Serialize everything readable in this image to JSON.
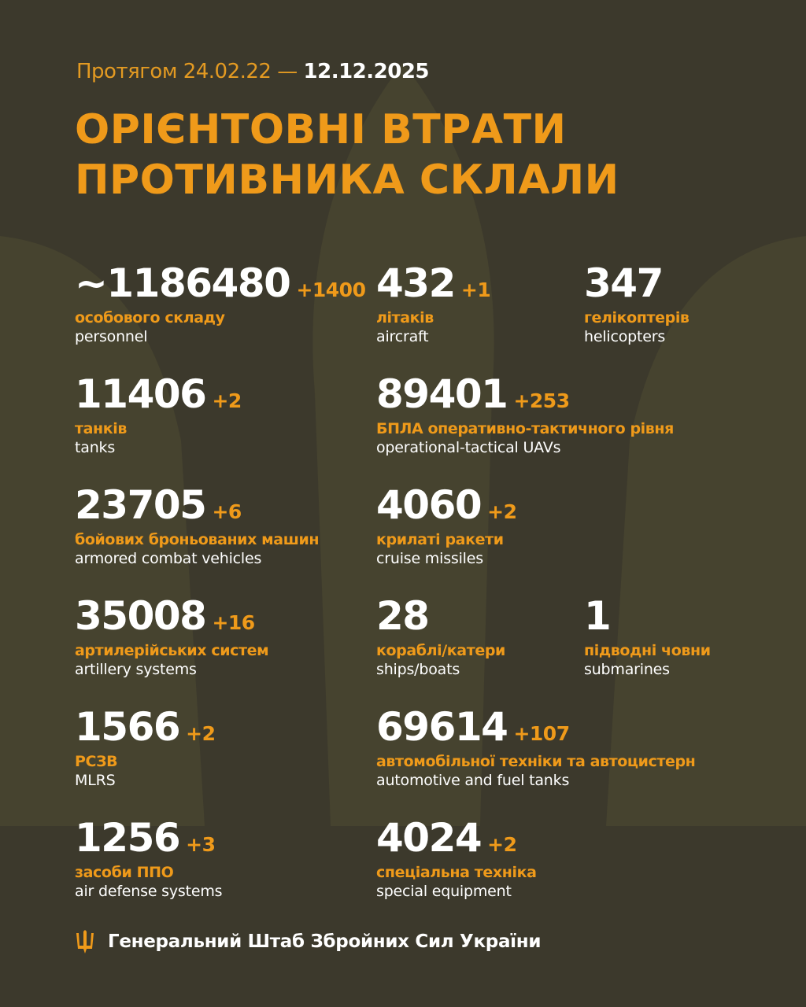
{
  "header": {
    "period_prefix": "Протягом 24.02.22 —",
    "period_end": "12.12.2025",
    "title_line1": "ОРІЄНТОВНІ ВТРАТИ",
    "title_line2": "ПРОТИВНИКА СКЛАЛИ"
  },
  "colors": {
    "background": "#3c392c",
    "accent": "#ef9a1a",
    "text": "#ffffff"
  },
  "stats": [
    {
      "value": "~1186480",
      "delta": "+1400",
      "ua": "особового складу",
      "en": "personnel"
    },
    {
      "value": "432",
      "delta": "+1",
      "ua": "літаків",
      "en": "aircraft"
    },
    {
      "value": "347",
      "delta": "",
      "ua": "гелікоптерів",
      "en": "helicopters"
    },
    {
      "value": "11406",
      "delta": "+2",
      "ua": "танків",
      "en": "tanks"
    },
    {
      "value": "89401",
      "delta": "+253",
      "ua": "БПЛА оперативно-тактичного рівня",
      "en": "operational-tactical UAVs"
    },
    {
      "value": "23705",
      "delta": "+6",
      "ua": "бойових броньованих машин",
      "en": "armored combat vehicles"
    },
    {
      "value": "4060",
      "delta": "+2",
      "ua": "крилаті ракети",
      "en": "cruise missiles"
    },
    {
      "value": "35008",
      "delta": "+16",
      "ua": "артилерійських систем",
      "en": "artillery systems"
    },
    {
      "value": "28",
      "delta": "",
      "ua": "кораблі/катери",
      "en": "ships/boats"
    },
    {
      "value": "1",
      "delta": "",
      "ua": "підводні човни",
      "en": "submarines"
    },
    {
      "value": "1566",
      "delta": "+2",
      "ua": "РСЗВ",
      "en": "MLRS"
    },
    {
      "value": "69614",
      "delta": "+107",
      "ua": "автомобільної техніки та автоцистерн",
      "en": "automotive and fuel tanks"
    },
    {
      "value": "1256",
      "delta": "+3",
      "ua": "засоби ППО",
      "en": "air defense systems"
    },
    {
      "value": "4024",
      "delta": "+2",
      "ua": "спеціальна техніка",
      "en": "special equipment"
    }
  ],
  "footer": {
    "icon": "trident-icon",
    "text": "Генеральний Штаб Збройних Сил України"
  }
}
